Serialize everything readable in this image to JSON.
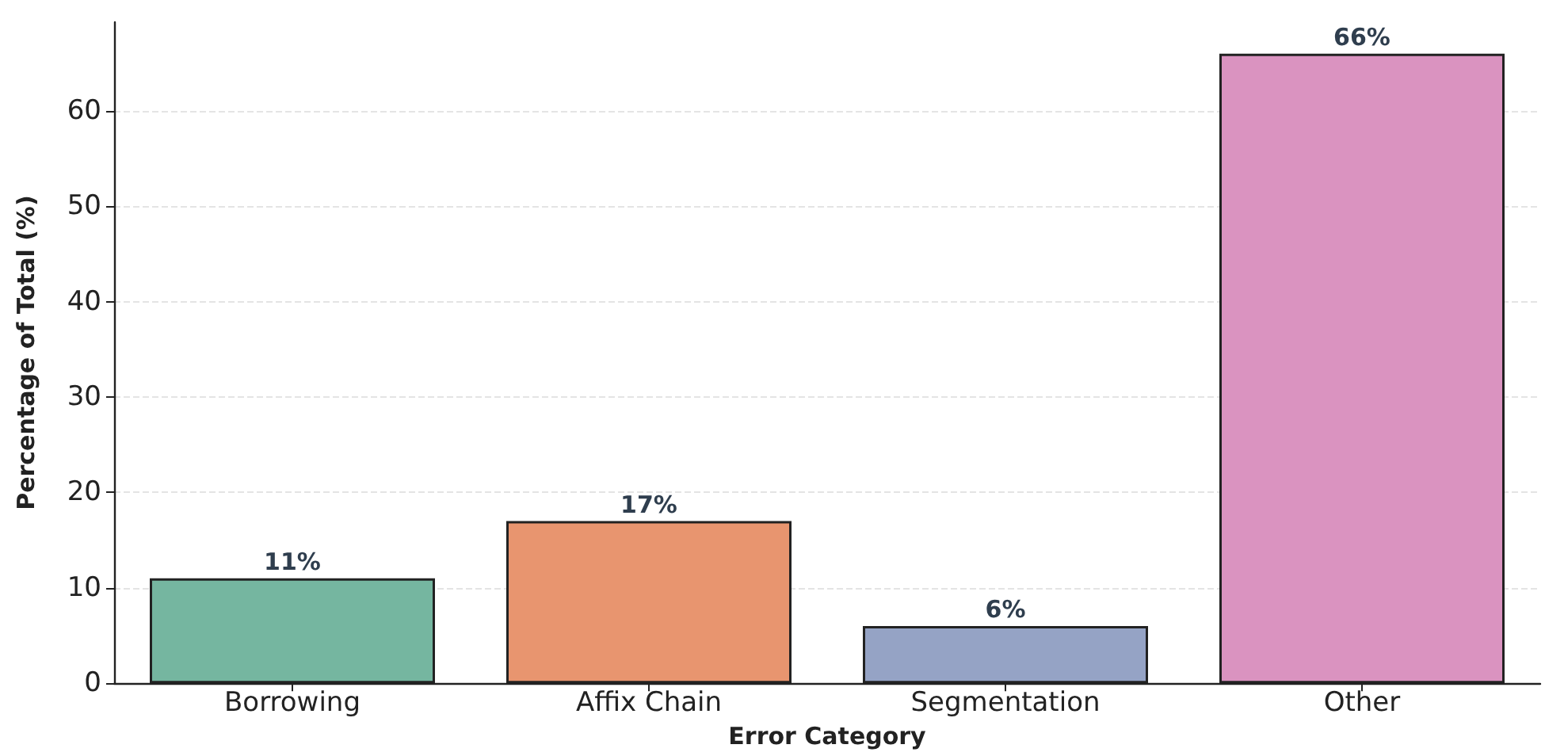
{
  "chart_data": {
    "type": "bar",
    "xlabel": "Error Category",
    "ylabel": "Percentage of Total (%)",
    "categories": [
      "Borrowing",
      "Affix Chain",
      "Segmentation",
      "Other"
    ],
    "values": [
      11,
      17,
      6,
      66
    ],
    "colors": [
      "#75b6a0",
      "#e8956f",
      "#95a3c5",
      "#da93c0"
    ],
    "value_labels": [
      "11%",
      "17%",
      "6%",
      "66%"
    ],
    "ylim": [
      0,
      69.3
    ],
    "yticks": [
      0,
      10,
      20,
      30,
      40,
      50,
      60
    ],
    "grid": "y"
  }
}
